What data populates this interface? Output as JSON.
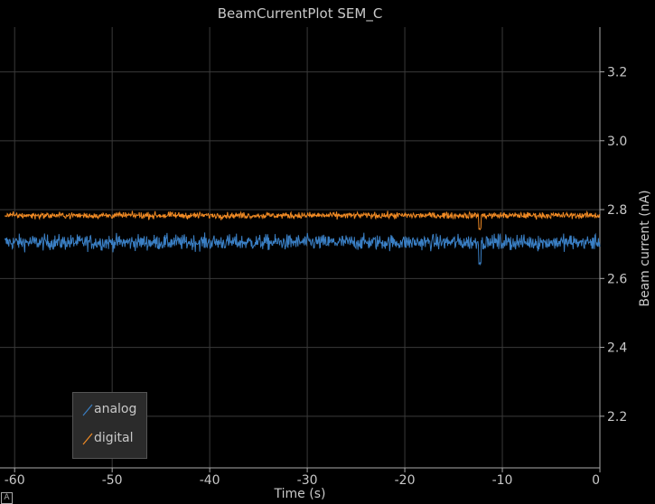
{
  "window": {
    "corner_button": "A"
  },
  "chart_data": {
    "type": "line",
    "title": "BeamCurrentPlot SEM_C",
    "xlabel": "Time (s)",
    "ylabel": "Beam current (nA)",
    "xlim": [
      -61.5,
      0
    ],
    "ylim": [
      2.05,
      3.33
    ],
    "xticks": [
      -60,
      -50,
      -40,
      -30,
      -20,
      -10,
      0
    ],
    "yticks": [
      2.2,
      2.4,
      2.6,
      2.8,
      3.0,
      3.2
    ],
    "ytick_labels": [
      "2.2",
      "2.4",
      "2.6",
      "2.8",
      "3.0",
      "3.2"
    ],
    "grid": true,
    "legend_position": "bottom-left",
    "x_range": [
      -61,
      0
    ],
    "series": [
      {
        "name": "analog",
        "color": "#3a7fc4",
        "mean": 2.705,
        "noise": 0.022,
        "dip": {
          "x": -12.3,
          "value": 2.64
        }
      },
      {
        "name": "digital",
        "color": "#f08a24",
        "mean": 2.783,
        "noise": 0.009,
        "dip": {
          "x": -12.3,
          "value": 2.74
        }
      }
    ]
  }
}
